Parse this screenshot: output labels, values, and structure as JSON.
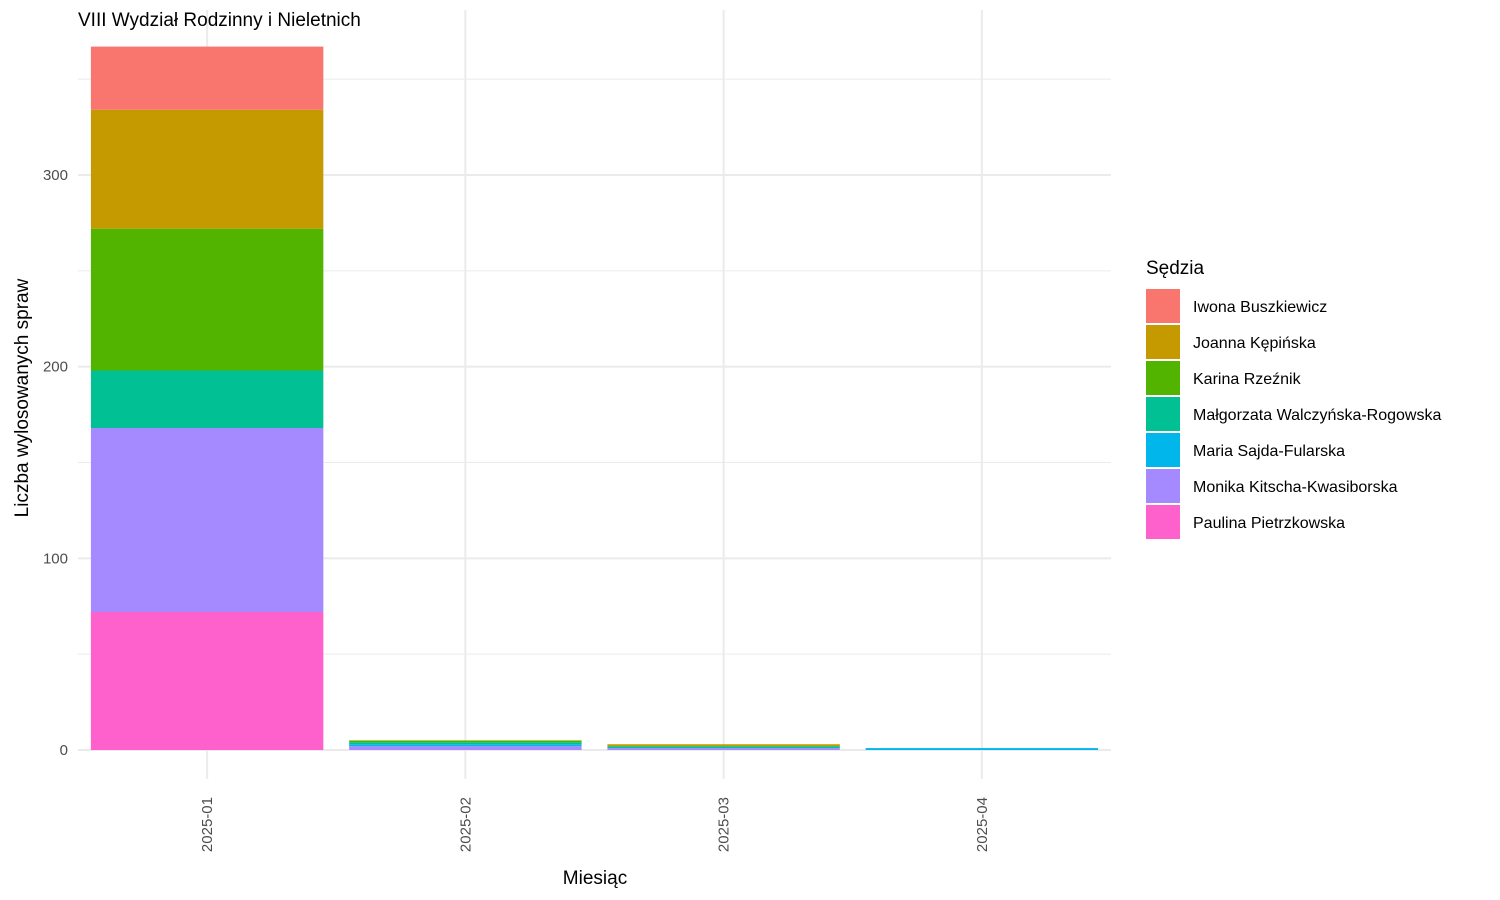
{
  "chart_data": {
    "type": "bar",
    "stacked": true,
    "title": "VIII Wydział Rodzinny i Nieletnich",
    "xlabel": "Miesiąc",
    "ylabel": "Liczba wylosowanych spraw",
    "categories": [
      "2025-01",
      "2025-02",
      "2025-03",
      "2025-04"
    ],
    "ylim": [
      0,
      368
    ],
    "yticks": [
      0,
      100,
      200,
      300
    ],
    "grid": true,
    "legend_title": "Sędzia",
    "legend_position": "right",
    "series": [
      {
        "name": "Paulina Pietrzkowska",
        "color": "#FF61CC",
        "values": [
          72,
          0,
          0,
          0
        ]
      },
      {
        "name": "Monika Kitscha-Kwasiborska",
        "color": "#A58AFF",
        "values": [
          96,
          2,
          1,
          0
        ]
      },
      {
        "name": "Maria Sajda-Fularska",
        "color": "#00B6EB",
        "values": [
          0,
          1,
          0,
          1
        ]
      },
      {
        "name": "Małgorzata Walczyńska-Rogowska",
        "color": "#00C094",
        "values": [
          30,
          1,
          1,
          0
        ]
      },
      {
        "name": "Karina Rzeźnik",
        "color": "#53B400",
        "values": [
          74,
          1,
          0,
          0
        ]
      },
      {
        "name": "Joanna Kępińska",
        "color": "#C49A00",
        "values": [
          62,
          0,
          1,
          0
        ]
      },
      {
        "name": "Iwona Buszkiewicz",
        "color": "#F8766D",
        "values": [
          33,
          0,
          0,
          0
        ]
      }
    ],
    "legend_order": [
      "Iwona Buszkiewicz",
      "Joanna Kępińska",
      "Karina Rzeźnik",
      "Małgorzata Walczyńska-Rogowska",
      "Maria Sajda-Fularska",
      "Monika Kitscha-Kwasiborska",
      "Paulina Pietrzkowska"
    ]
  }
}
